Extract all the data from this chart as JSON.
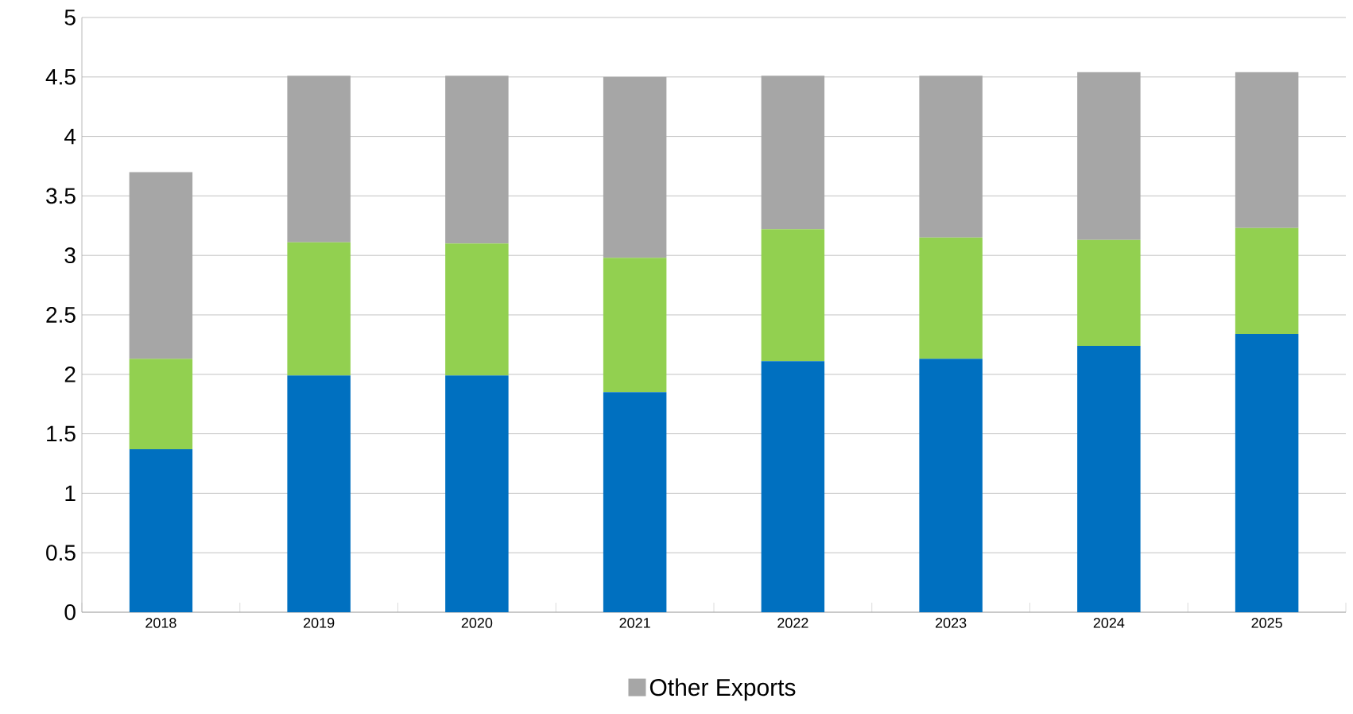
{
  "chart_data": {
    "type": "bar",
    "stacked": true,
    "categories": [
      "2018",
      "2019",
      "2020",
      "2021",
      "2022",
      "2023",
      "2024",
      "2025"
    ],
    "series": [
      {
        "color": "#0070c0",
        "values": [
          1.37,
          1.99,
          1.99,
          1.85,
          2.11,
          2.13,
          2.24,
          2.34
        ]
      },
      {
        "color": "#92d050",
        "values": [
          0.76,
          1.12,
          1.11,
          1.13,
          1.11,
          1.02,
          0.89,
          0.89
        ]
      },
      {
        "name": "Other Exports",
        "color": "#a6a6a6",
        "values": [
          1.57,
          1.4,
          1.41,
          1.52,
          1.29,
          1.36,
          1.41,
          1.31
        ]
      }
    ],
    "ylim": [
      0,
      5
    ],
    "yticks": [
      0,
      0.5,
      1,
      1.5,
      2,
      2.5,
      3,
      3.5,
      4,
      4.5,
      5
    ],
    "grid": "y",
    "legend": "bottom"
  }
}
